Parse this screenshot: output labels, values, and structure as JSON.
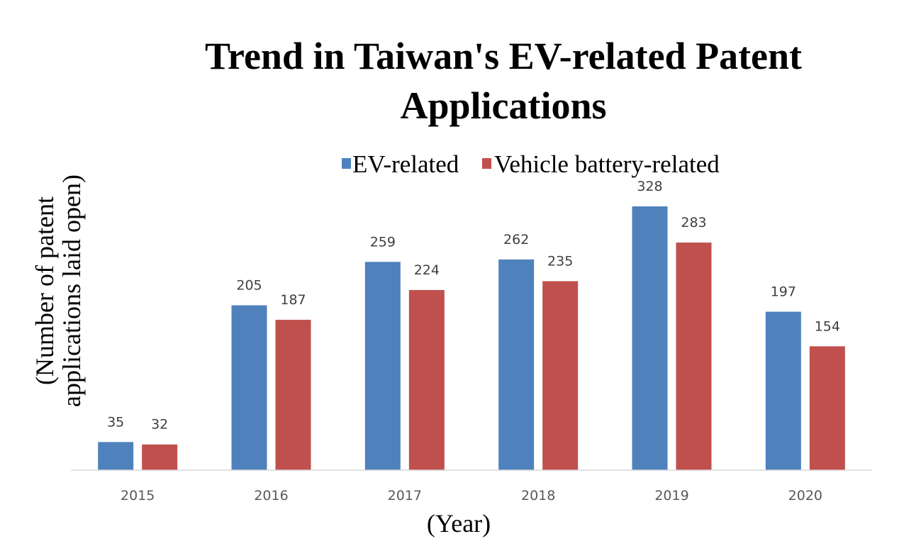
{
  "chart_data": {
    "type": "bar",
    "title_lines": [
      "Trend in Taiwan's EV-related Patent",
      "Applications"
    ],
    "xlabel": "(Year)",
    "ylabel_lines": [
      "(Number of patent",
      "applications laid open)"
    ],
    "categories": [
      "2015",
      "2016",
      "2017",
      "2018",
      "2019",
      "2020"
    ],
    "series": [
      {
        "name": "EV-related",
        "color": "#4F81BD",
        "values": [
          35,
          205,
          259,
          262,
          328,
          197
        ]
      },
      {
        "name": "Vehicle battery-related",
        "color": "#C0504D",
        "values": [
          32,
          187,
          224,
          235,
          283,
          154
        ]
      }
    ],
    "ylim": [
      0,
      328
    ],
    "legend": "top",
    "grid": false,
    "data_labels": true
  }
}
